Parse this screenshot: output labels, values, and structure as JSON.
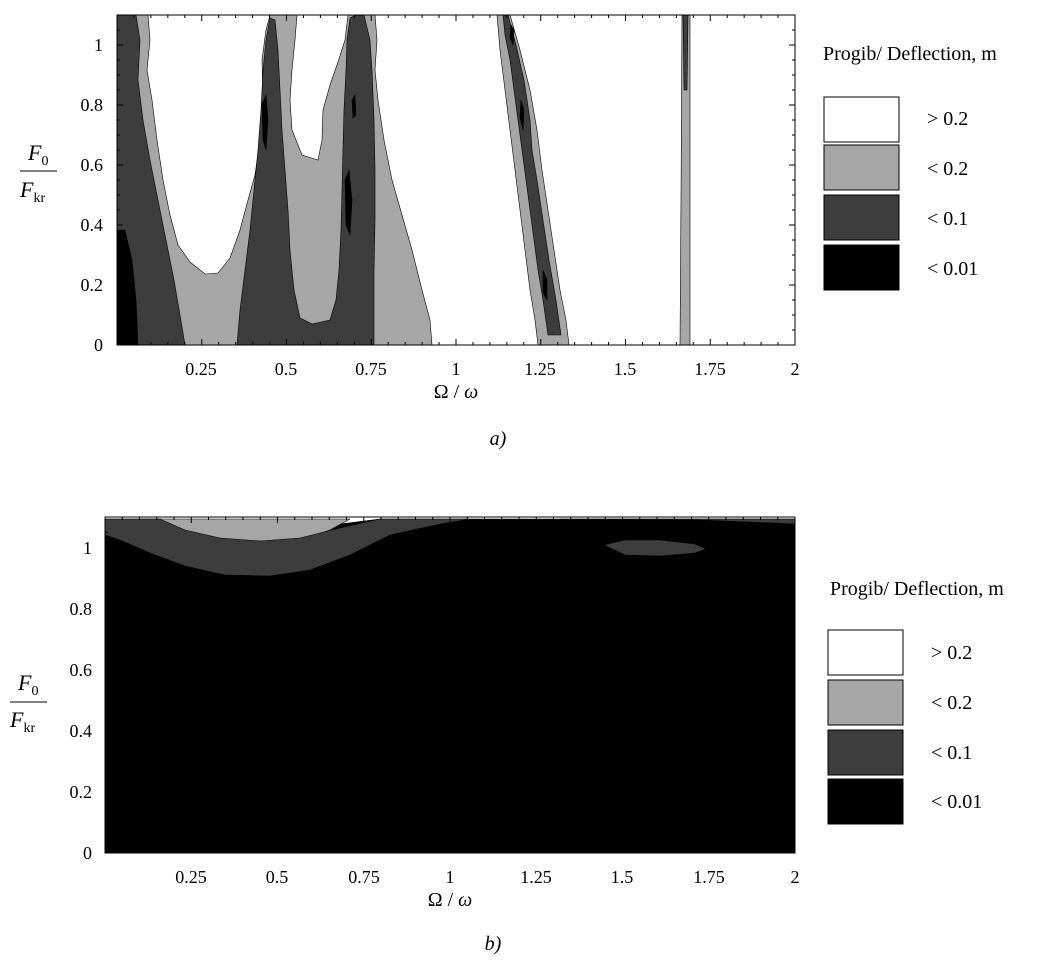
{
  "chart_data": [
    {
      "type": "contour",
      "panel_label": "a)",
      "xlabel_num": "Ω",
      "xlabel_den": "ω",
      "ylabel_num": "F",
      "ylabel_num_sub": "0",
      "ylabel_den": "F",
      "ylabel_den_sub": "kr",
      "xlim": [
        0,
        2
      ],
      "ylim": [
        0,
        1.1
      ],
      "xticks": [
        "0.25",
        "0.5",
        "0.75",
        "1",
        "1.25",
        "1.5",
        "1.75",
        "2"
      ],
      "yticks": [
        "0",
        "0.2",
        "0.4",
        "0.6",
        "0.8",
        "1"
      ],
      "legend": {
        "title": "Progib/ Deflection, m",
        "items": [
          {
            "label": "> 0.2",
            "color": "#ffffff"
          },
          {
            "label": "< 0.2",
            "color": "#a6a6a6"
          },
          {
            "label": "< 0.1",
            "color": "#3d3d3d"
          },
          {
            "label": "< 0.01",
            "color": "#000000"
          }
        ]
      }
    },
    {
      "type": "contour",
      "panel_label": "b)",
      "xlabel_num": "Ω",
      "xlabel_den": "ω",
      "ylabel_num": "F",
      "ylabel_num_sub": "0",
      "ylabel_den": "F",
      "ylabel_den_sub": "kr",
      "xlim": [
        0,
        2
      ],
      "ylim": [
        0,
        1.1
      ],
      "xticks": [
        "0.25",
        "0.5",
        "0.75",
        "1",
        "1.25",
        "1.5",
        "1.75",
        "2"
      ],
      "yticks": [
        "0",
        "0.2",
        "0.4",
        "0.6",
        "0.8",
        "1"
      ],
      "legend": {
        "title": "Progib/ Deflection, m",
        "items": [
          {
            "label": "> 0.2",
            "color": "#ffffff"
          },
          {
            "label": "< 0.2",
            "color": "#a6a6a6"
          },
          {
            "label": "< 0.1",
            "color": "#3d3d3d"
          },
          {
            "label": "< 0.01",
            "color": "#000000"
          }
        ]
      }
    }
  ]
}
